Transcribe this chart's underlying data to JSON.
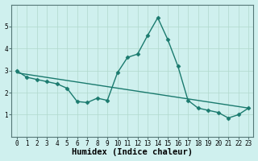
{
  "xlabel": "Humidex (Indice chaleur)",
  "background_color": "#cff0ee",
  "line_color": "#1a7a6e",
  "x_values": [
    0,
    1,
    2,
    3,
    4,
    5,
    6,
    7,
    8,
    9,
    10,
    11,
    12,
    13,
    14,
    15,
    16,
    17,
    18,
    19,
    20,
    21,
    22,
    23
  ],
  "y_values": [
    3.0,
    2.7,
    2.6,
    2.5,
    2.4,
    2.2,
    1.6,
    1.55,
    1.75,
    1.65,
    2.9,
    3.6,
    3.75,
    4.6,
    5.4,
    4.4,
    3.2,
    1.65,
    1.3,
    1.2,
    1.1,
    0.85,
    1.0,
    1.3
  ],
  "trend_x": [
    0,
    23
  ],
  "trend_y": [
    2.9,
    1.3
  ],
  "ylim": [
    0,
    6
  ],
  "xlim": [
    -0.5,
    23.5
  ],
  "yticks": [
    1,
    2,
    3,
    4,
    5
  ],
  "xtick_labels": [
    "0",
    "1",
    "2",
    "3",
    "4",
    "5",
    "6",
    "7",
    "8",
    "9",
    "10",
    "11",
    "12",
    "13",
    "14",
    "15",
    "16",
    "17",
    "18",
    "19",
    "20",
    "21",
    "22",
    "23"
  ],
  "grid_color": "#b0d8cc",
  "grid_linewidth": 0.5,
  "marker": "D",
  "marker_size": 2.5,
  "line_width": 1.0,
  "xlabel_fontsize": 7.5,
  "tick_fontsize": 5.5,
  "spine_color": "#557777"
}
